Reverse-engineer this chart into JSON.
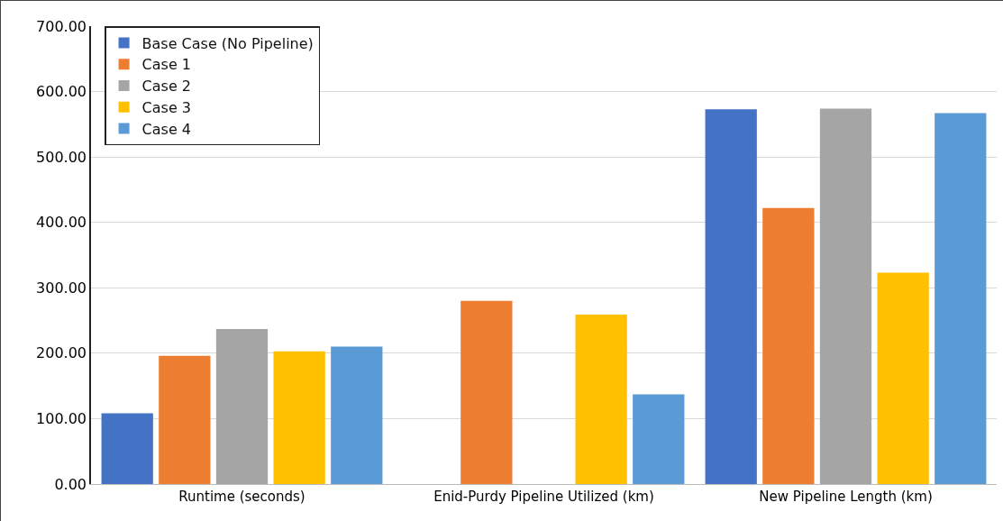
{
  "chart_data": {
    "type": "bar",
    "categories": [
      "Runtime (seconds)",
      "Enid-Purdy Pipeline Utilized (km)",
      "New Pipeline Length (km)"
    ],
    "series": [
      {
        "name": "Base Case (No Pipeline)",
        "color": "#4472c4",
        "values": [
          108,
          0,
          573
        ]
      },
      {
        "name": "Case 1",
        "color": "#ed7d31",
        "values": [
          196,
          280,
          422
        ]
      },
      {
        "name": "Case 2",
        "color": "#a5a5a5",
        "values": [
          237,
          0,
          574
        ]
      },
      {
        "name": "Case 3",
        "color": "#ffc000",
        "values": [
          203,
          259,
          323
        ]
      },
      {
        "name": "Case 4",
        "color": "#5b9bd5",
        "values": [
          210,
          137,
          567
        ]
      }
    ],
    "ylim": [
      0,
      700
    ],
    "yticks": [
      {
        "value": 0,
        "label": "0.00"
      },
      {
        "value": 100,
        "label": "100.00"
      },
      {
        "value": 200,
        "label": "200.00"
      },
      {
        "value": 300,
        "label": "300.00"
      },
      {
        "value": 400,
        "label": "400.00"
      },
      {
        "value": 500,
        "label": "500.00"
      },
      {
        "value": 600,
        "label": "600.00"
      },
      {
        "value": 700,
        "label": "700.00"
      }
    ],
    "grid": "y",
    "legend": "top left"
  }
}
